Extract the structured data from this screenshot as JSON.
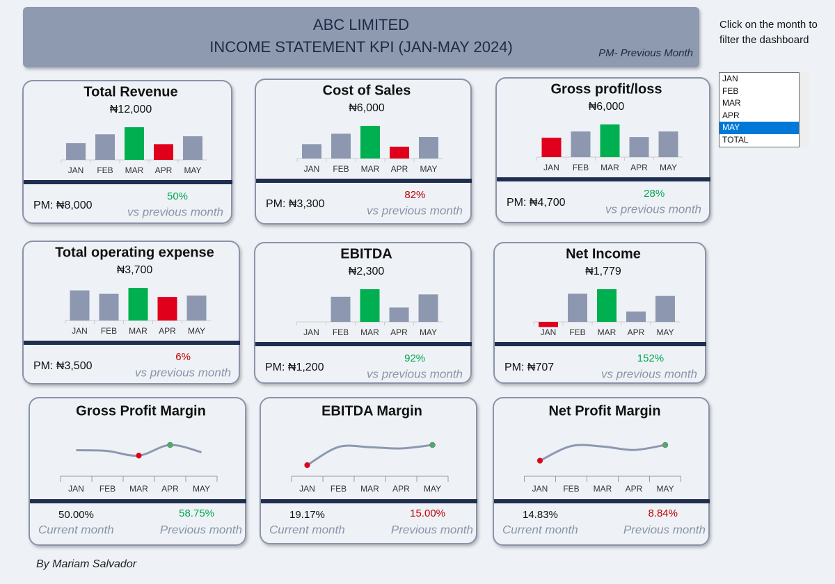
{
  "header": {
    "company": "ABC LIMITED",
    "title": "INCOME STATEMENT KPI (JAN-MAY 2024)",
    "note": "PM- Previous Month"
  },
  "filter": {
    "instruction": "Click on the month to filter the dashboard",
    "options": [
      "JAN",
      "FEB",
      "MAR",
      "APR",
      "MAY",
      "TOTAL"
    ],
    "selected": 4
  },
  "kpi_cards": [
    {
      "title": "Total Revenue",
      "value": "₦12,000",
      "pm": "PM: ₦8,000",
      "change": "50%",
      "change_color": "#00a651",
      "caption": "vs previous month",
      "chart": {
        "type": "bar",
        "categories": [
          "JAN",
          "FEB",
          "MAR",
          "APR",
          "MAY"
        ],
        "values": [
          8500,
          13000,
          16600,
          8000,
          12000
        ],
        "colors": [
          "#8d98b0",
          "#8d98b0",
          "#00b050",
          "#e0001b",
          "#8d98b0"
        ]
      }
    },
    {
      "title": "Cost of Sales",
      "value": "₦6,000",
      "pm": "PM: ₦3,300",
      "change": "82%",
      "change_color": "#c00000",
      "caption": "vs previous month",
      "chart": {
        "type": "bar",
        "categories": [
          "JAN",
          "FEB",
          "MAR",
          "APR",
          "MAY"
        ],
        "values": [
          4000,
          6900,
          9100,
          3300,
          6000
        ],
        "colors": [
          "#8d98b0",
          "#8d98b0",
          "#00b050",
          "#e0001b",
          "#8d98b0"
        ]
      }
    },
    {
      "title": "Gross profit/loss",
      "value": "₦6,000",
      "pm": "PM: ₦4,700",
      "change": "28%",
      "change_color": "#00a651",
      "caption": "vs previous month",
      "chart": {
        "type": "bar",
        "categories": [
          "JAN",
          "FEB",
          "MAR",
          "APR",
          "MAY"
        ],
        "values": [
          4550,
          6000,
          7650,
          4700,
          6000
        ],
        "colors": [
          "#e0001b",
          "#8d98b0",
          "#00b050",
          "#8d98b0",
          "#8d98b0"
        ]
      }
    },
    {
      "title": "Total operating expense",
      "value": "₦3,700",
      "pm": "PM: ₦3,500",
      "change": "6%",
      "change_color": "#c00000",
      "caption": "vs previous month",
      "chart": {
        "type": "bar",
        "categories": [
          "JAN",
          "FEB",
          "MAR",
          "APR",
          "MAY"
        ],
        "values": [
          4480,
          3970,
          4860,
          3500,
          3700
        ],
        "colors": [
          "#8d98b0",
          "#8d98b0",
          "#00b050",
          "#e0001b",
          "#8d98b0"
        ]
      }
    },
    {
      "title": "EBITDA",
      "value": "₦2,300",
      "pm": "PM: ₦1,200",
      "change": "92%",
      "change_color": "#00a651",
      "caption": "vs previous month",
      "chart": {
        "type": "bar",
        "categories": [
          "JAN",
          "FEB",
          "MAR",
          "APR",
          "MAY"
        ],
        "values": [
          0,
          2100,
          2730,
          1200,
          2300
        ],
        "colors": [
          "#e0001b",
          "#8d98b0",
          "#00b050",
          "#8d98b0",
          "#8d98b0"
        ]
      }
    },
    {
      "title": "Net Income",
      "value": "₦1,779",
      "pm": "PM:  ₦707",
      "change": "152%",
      "change_color": "#00a651",
      "caption": "vs previous month",
      "chart": {
        "type": "bar",
        "categories": [
          "JAN",
          "FEB",
          "MAR",
          "APR",
          "MAY"
        ],
        "values": [
          -350,
          1930,
          2240,
          707,
          1779
        ],
        "colors": [
          "#e0001b",
          "#8d98b0",
          "#00b050",
          "#8d98b0",
          "#8d98b0"
        ]
      }
    }
  ],
  "margin_cards": [
    {
      "title": "Gross Profit Margin",
      "current": "50.00%",
      "current_caption": "Current month",
      "previous": "58.75%",
      "previous_color": "#00a651",
      "previous_caption": "Previous month",
      "chart": {
        "type": "line",
        "categories": [
          "JAN",
          "FEB",
          "MAR",
          "APR",
          "MAY"
        ],
        "values": [
          52.5,
          51.5,
          46,
          58.75,
          50
        ],
        "color": "#8d98b0",
        "low_color": "#e0001b",
        "high_color": "#3cb371"
      }
    },
    {
      "title": "EBITDA Margin",
      "current": "19.17%",
      "current_caption": "Current month",
      "previous": "15.00%",
      "previous_color": "#c00000",
      "previous_caption": "Previous month",
      "chart": {
        "type": "line",
        "categories": [
          "JAN",
          "FEB",
          "MAR",
          "APR",
          "MAY"
        ],
        "values": [
          -5,
          16.7,
          16.5,
          15,
          19.17
        ],
        "color": "#8d98b0",
        "low_color": "#e0001b",
        "high_color": "#3cb371"
      }
    },
    {
      "title": "Net Profit Margin",
      "current": "14.83%",
      "current_caption": "Current month",
      "previous": "8.84%",
      "previous_color": "#c00000",
      "previous_caption": "Previous month",
      "chart": {
        "type": "line",
        "categories": [
          "JAN",
          "FEB",
          "MAR",
          "APR",
          "MAY"
        ],
        "values": [
          -4,
          13.5,
          13,
          8.84,
          14.83
        ],
        "color": "#8d98b0",
        "low_color": "#e0001b",
        "high_color": "#3cb371"
      }
    }
  ],
  "footer": "By Mariam Salvador"
}
